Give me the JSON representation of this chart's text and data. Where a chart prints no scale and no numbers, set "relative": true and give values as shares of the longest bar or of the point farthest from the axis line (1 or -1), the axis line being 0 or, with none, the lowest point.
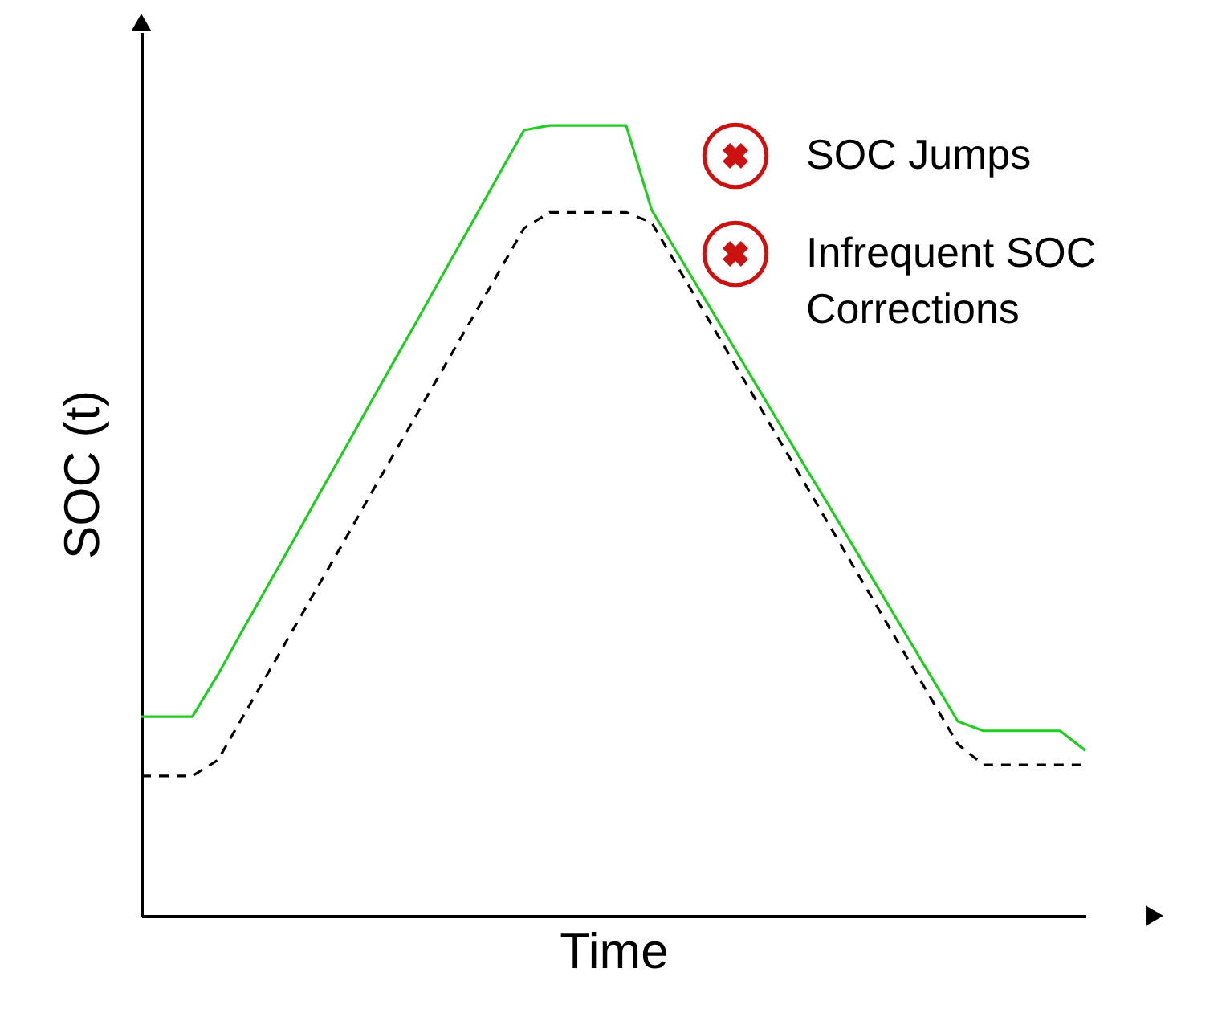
{
  "chart_data": {
    "type": "line",
    "relative": true,
    "xlabel": "Time",
    "ylabel": "SOC (t)",
    "marker": "none",
    "categories": [
      null,
      null,
      null,
      null,
      null,
      null,
      null,
      null,
      null,
      null,
      null,
      null,
      null,
      null,
      null,
      null,
      null,
      null,
      null,
      null,
      null,
      null,
      null,
      null,
      null,
      null,
      null,
      null,
      null,
      null,
      null,
      null,
      null,
      null,
      null,
      null,
      null,
      null
    ],
    "annotations": [
      "SOC Jumps",
      "Infrequent SOC Corrections"
    ],
    "series": [
      {
        "color": "#22cc22",
        "line_style": "solid",
        "values": [
          0.252,
          0.252,
          0.252,
          0.305,
          0.363,
          0.42,
          0.477,
          0.535,
          0.592,
          0.65,
          0.707,
          0.764,
          0.822,
          0.879,
          0.937,
          0.994,
          1,
          1,
          1,
          1,
          0.893,
          0.839,
          0.785,
          0.731,
          0.677,
          0.623,
          0.569,
          0.516,
          0.462,
          0.408,
          0.354,
          0.3,
          0.246,
          0.234,
          0.234,
          0.234,
          0.234,
          0.209
        ]
      },
      {
        "color": "#000000",
        "line_style": "dashed",
        "values": [
          0.177,
          0.177,
          0.177,
          0.197,
          0.253,
          0.309,
          0.365,
          0.421,
          0.477,
          0.534,
          0.59,
          0.646,
          0.702,
          0.758,
          0.814,
          0.87,
          0.89,
          0.89,
          0.89,
          0.89,
          0.877,
          0.822,
          0.767,
          0.712,
          0.657,
          0.602,
          0.547,
          0.492,
          0.437,
          0.382,
          0.327,
          0.272,
          0.217,
          0.191,
          0.191,
          0.191,
          0.191,
          0.191
        ]
      }
    ]
  }
}
